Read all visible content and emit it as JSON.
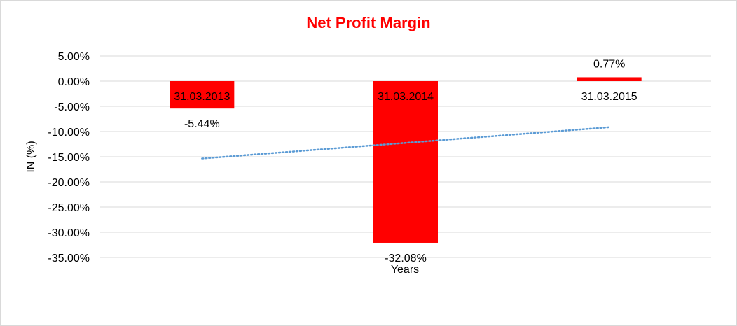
{
  "chart_data": {
    "type": "bar",
    "title": "Net Profit Margin",
    "xlabel": "Years",
    "ylabel": "IN (%)",
    "categories": [
      "31.03.2013",
      "31.03.2014",
      "31.03.2015"
    ],
    "values": [
      -5.44,
      -32.08,
      0.77
    ],
    "data_labels": [
      "-5.44%",
      "-32.08%",
      "0.77%"
    ],
    "ylim": [
      -35,
      5
    ],
    "yticks": [
      5,
      0,
      -5,
      -10,
      -15,
      -20,
      -25,
      -30,
      -35
    ],
    "ytick_labels": [
      "5.00%",
      "0.00%",
      "-5.00%",
      "-10.00%",
      "-15.00%",
      "-20.00%",
      "-25.00%",
      "-30.00%",
      "-35.00%"
    ],
    "grid": true,
    "legend": "none",
    "trendline": {
      "type": "linear",
      "style": "dotted"
    },
    "colors": {
      "bar": "#ff0000",
      "title": "#ff0000",
      "trendline": "#5b9bd5",
      "grid": "#d9d9d9"
    }
  }
}
